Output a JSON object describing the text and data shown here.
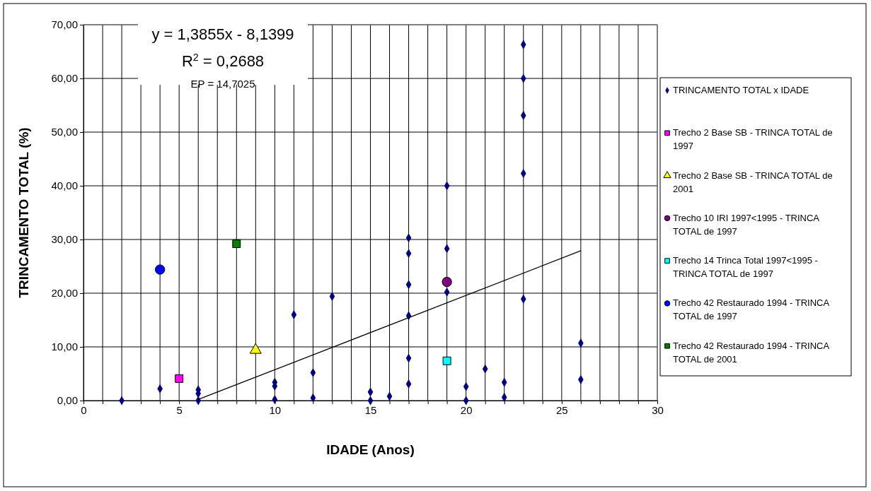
{
  "chart_data": {
    "type": "scatter",
    "xlabel": "IDADE (Anos)",
    "ylabel": "TRINCAMENTO TOTAL (%)",
    "xlim": [
      0,
      30
    ],
    "ylim": [
      0,
      70
    ],
    "xticks": [
      0,
      {
        "value": 1,
        "label": null
      },
      {
        "value": 2,
        "label": null
      },
      {
        "value": 3,
        "label": null
      },
      {
        "value": 4,
        "label": null
      },
      5,
      {
        "value": 6,
        "label": null
      },
      {
        "value": 7,
        "label": null
      },
      {
        "value": 8,
        "label": null
      },
      {
        "value": 9,
        "label": null
      },
      10,
      {
        "value": 11,
        "label": null
      },
      {
        "value": 12,
        "label": null
      },
      {
        "value": 13,
        "label": null
      },
      {
        "value": 14,
        "label": null
      },
      15,
      {
        "value": 16,
        "label": null
      },
      {
        "value": 17,
        "label": null
      },
      {
        "value": 18,
        "label": null
      },
      {
        "value": 19,
        "label": null
      },
      20,
      {
        "value": 21,
        "label": null
      },
      {
        "value": 22,
        "label": null
      },
      {
        "value": 23,
        "label": null
      },
      {
        "value": 24,
        "label": null
      },
      25,
      {
        "value": 26,
        "label": null
      },
      {
        "value": 27,
        "label": null
      },
      {
        "value": 28,
        "label": null
      },
      {
        "value": 29,
        "label": null
      },
      30
    ],
    "yticks": [
      {
        "value": 0,
        "label": "0,00"
      },
      {
        "value": 10,
        "label": "10,00"
      },
      {
        "value": 20,
        "label": "20,00"
      },
      {
        "value": 30,
        "label": "30,00"
      },
      {
        "value": 40,
        "label": "40,00"
      },
      {
        "value": 50,
        "label": "50,00"
      },
      {
        "value": 60,
        "label": "60,00"
      },
      {
        "value": 70,
        "label": "70,00"
      }
    ],
    "grid": true,
    "legend": "right",
    "annotations": [
      "y = 1,3855x - 8,1399",
      "R$^{2}$ = 0,2688",
      "EP = 14,7025"
    ],
    "series": [
      {
        "name": "TRINCAMENTO TOTAL x IDADE",
        "color": "#000080",
        "marker": "diamond",
        "x": [
          2,
          4,
          6,
          6,
          6,
          10,
          10,
          10,
          11,
          12,
          12,
          13,
          15,
          15,
          16,
          17,
          17,
          17,
          17,
          17,
          17,
          19,
          19,
          19,
          20,
          20,
          21,
          22,
          22,
          23,
          23,
          23,
          23,
          23,
          26,
          26
        ],
        "values": [
          0,
          2.2,
          2.0,
          1.3,
          0,
          3.4,
          2.7,
          0.2,
          16.0,
          5.2,
          0.5,
          19.4,
          1.6,
          0,
          0.8,
          30.3,
          27.4,
          21.6,
          15.8,
          7.9,
          3.1,
          40.0,
          28.3,
          20.2,
          2.6,
          0,
          5.9,
          3.4,
          0.6,
          66.3,
          60.0,
          53.1,
          42.3,
          18.9,
          10.7,
          3.9
        ]
      },
      {
        "name": "Trecho 2 Base SB - TRINCA TOTAL de 1997",
        "color": "#ff00ff",
        "marker": "square",
        "x": [
          5
        ],
        "values": [
          4.1
        ]
      },
      {
        "name": "Trecho 2 Base SB - TRINCA TOTAL de 2001",
        "color": "#ffff00",
        "marker": "triangle",
        "x": [
          9
        ],
        "values": [
          9.4
        ]
      },
      {
        "name": "Trecho 10 IRI 1997<1995 - TRINCA TOTAL de 1997",
        "color": "#800080",
        "marker": "circle",
        "x": [
          19
        ],
        "values": [
          22.1
        ]
      },
      {
        "name": "Trecho 14 Trinca Total 1997<1995 - TRINCA TOTAL de 1997",
        "color": "#00ffff",
        "marker": "square",
        "x": [
          19
        ],
        "values": [
          7.4
        ]
      },
      {
        "name": "Trecho 42 Restaurado 1994 - TRINCA TOTAL de 1997",
        "color": "#0000ff",
        "marker": "circle",
        "x": [
          4
        ],
        "values": [
          24.4
        ]
      },
      {
        "name": "Trecho 42 Restaurado 1994 - TRINCA TOTAL de 2001",
        "color": "#008000",
        "marker": "square",
        "x": [
          8
        ],
        "values": [
          29.2
        ]
      },
      {
        "type": "line",
        "color": "#000000",
        "marker": "none",
        "x": [
          6,
          26
        ],
        "values": [
          0.2,
          27.9
        ]
      }
    ]
  }
}
